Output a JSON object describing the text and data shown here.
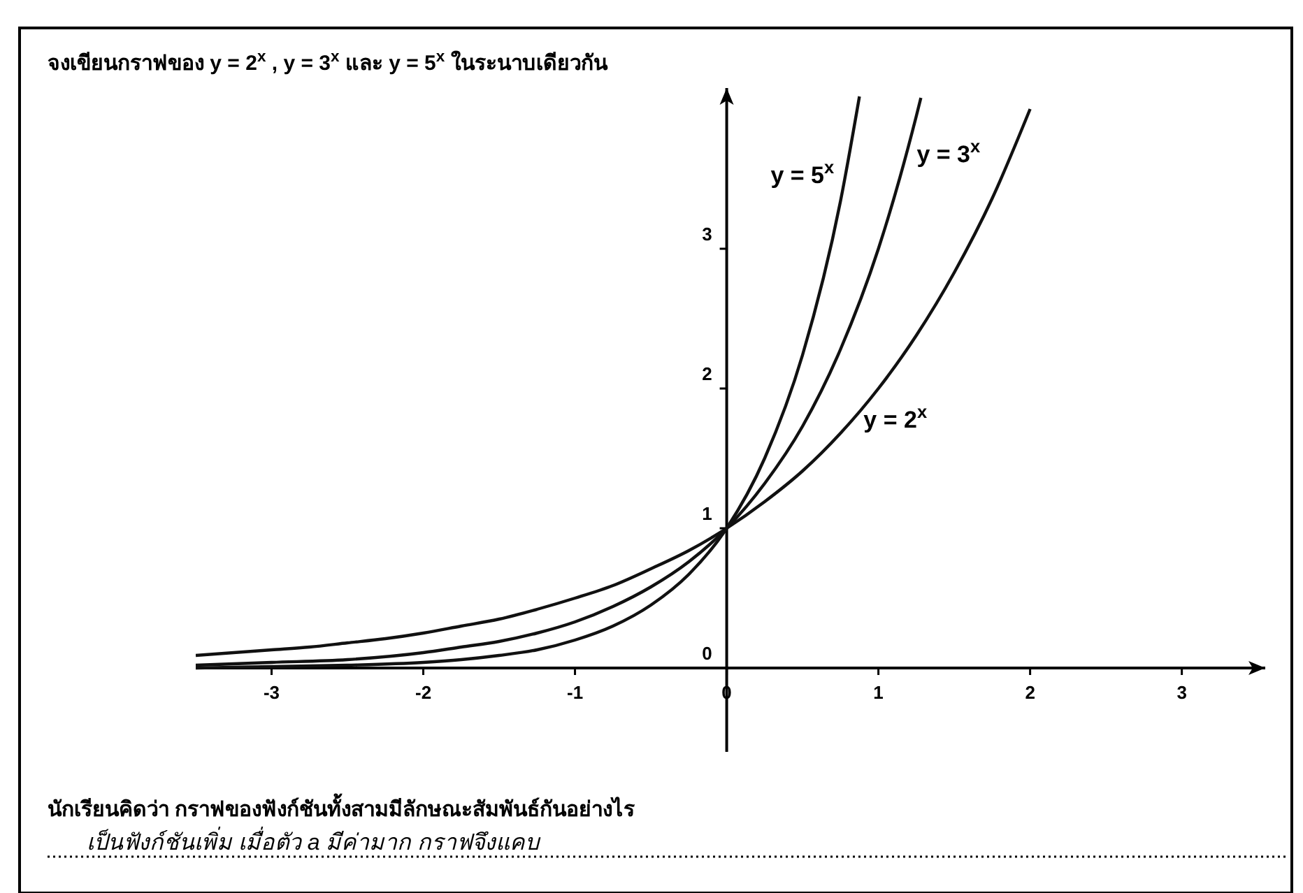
{
  "chart_data": {
    "type": "line",
    "title": "จงเขียนกราฟของ  y = 2$^{x}$ ,  y = 3$^{x}$  และ  y = 5$^{x}$  ในระนาบเดียวกัน",
    "series": [
      {
        "name": "y = 2$^{x}$",
        "color": "#111111",
        "x": [
          -3.5,
          -3.25,
          -3,
          -2.75,
          -2.5,
          -2.25,
          -2,
          -1.75,
          -1.5,
          -1.25,
          -1,
          -0.75,
          -0.5,
          -0.25,
          0,
          0.25,
          0.5,
          0.75,
          1,
          1.25,
          1.5,
          1.75,
          2
        ],
        "values": [
          0.09,
          0.11,
          0.13,
          0.15,
          0.18,
          0.21,
          0.25,
          0.3,
          0.35,
          0.42,
          0.5,
          0.59,
          0.71,
          0.84,
          1,
          1.19,
          1.41,
          1.68,
          2,
          2.38,
          2.83,
          3.36,
          4
        ]
      },
      {
        "name": "y = 3$^{x}$",
        "color": "#111111",
        "x": [
          -3.5,
          -3,
          -2.5,
          -2,
          -1.75,
          -1.5,
          -1.25,
          -1,
          -0.75,
          -0.5,
          -0.25,
          0,
          0.25,
          0.5,
          0.75,
          1,
          1.25,
          1.28
        ],
        "values": [
          0.02,
          0.04,
          0.06,
          0.11,
          0.15,
          0.19,
          0.25,
          0.33,
          0.44,
          0.58,
          0.76,
          1,
          1.32,
          1.73,
          2.28,
          3,
          3.95,
          4.08
        ]
      },
      {
        "name": "y = 5$^{x}$",
        "color": "#111111",
        "x": [
          -3.5,
          -3,
          -2.5,
          -2,
          -1.75,
          -1.5,
          -1.25,
          -1,
          -0.75,
          -0.5,
          -0.25,
          0,
          0.25,
          0.5,
          0.75,
          0.875
        ],
        "values": [
          0,
          0.01,
          0.02,
          0.04,
          0.06,
          0.09,
          0.13,
          0.2,
          0.3,
          0.45,
          0.67,
          1,
          1.5,
          2.24,
          3.34,
          4.09
        ]
      }
    ],
    "xlim": [
      -3.5,
      3.55
    ],
    "ylim": [
      -0.6,
      4.15
    ],
    "xticks": [
      -3,
      -2,
      -1,
      0,
      1,
      2,
      3
    ],
    "yticks": [
      0,
      1,
      2,
      3
    ],
    "grid": false,
    "marker": "none",
    "line_style": "solid",
    "annotations": [
      "นักเรียนคิดว่า กราฟของฟังก์ชันทั้งสามมีลักษณะสัมพันธ์กันอย่างไร",
      "เป็นฟังก์ชันเพิ่ม  เมื่อตัว  a  มีค่ามาก กราฟจึงแคบ"
    ]
  }
}
